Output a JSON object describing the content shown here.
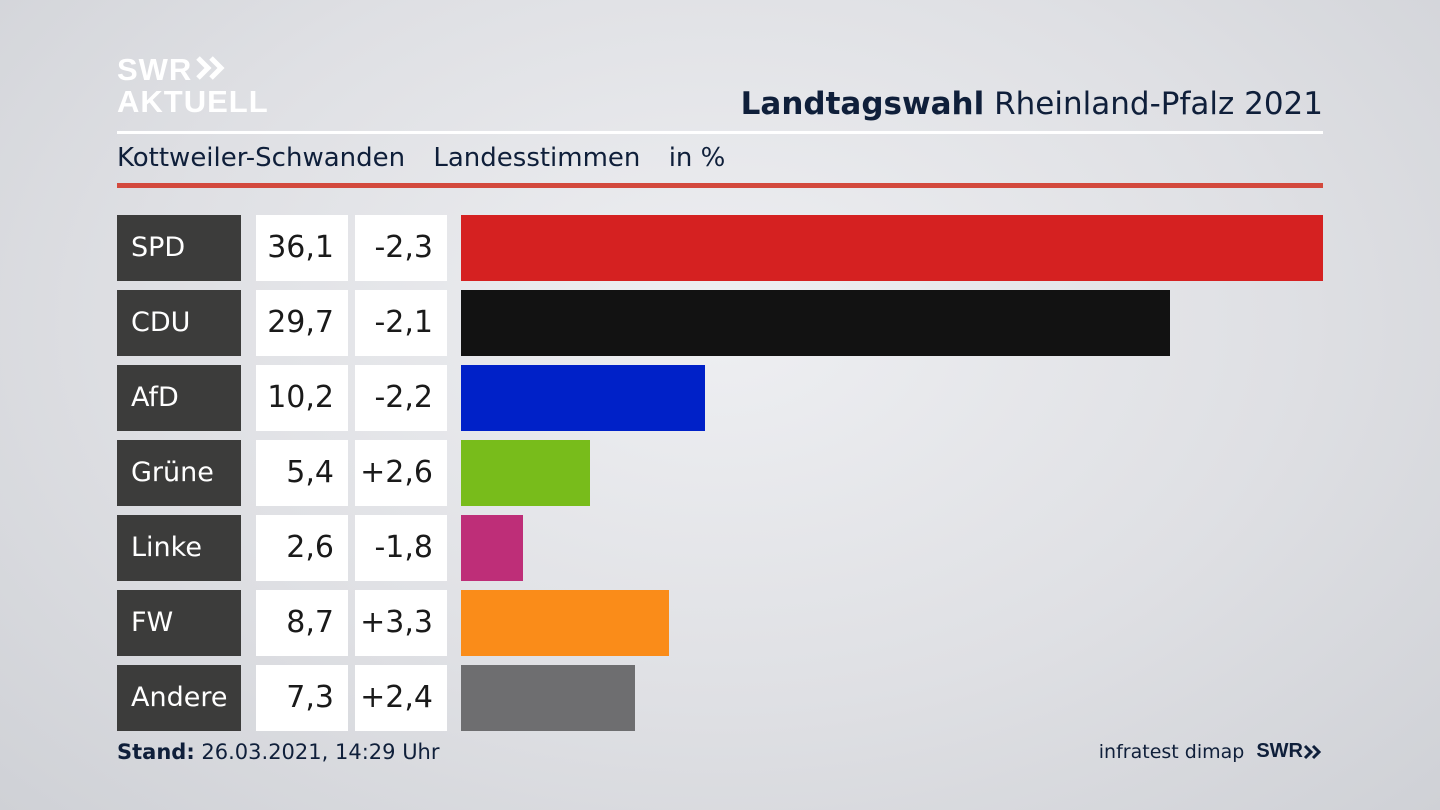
{
  "logo": {
    "line1": "SWR",
    "line2": "AKTUELL"
  },
  "header": {
    "title_bold": "Landtagswahl",
    "title_rest": "Rheinland-Pfalz 2021"
  },
  "subheader": {
    "district": "Kottweiler-Schwanden",
    "type": "Landesstimmen",
    "unit": "in %"
  },
  "chart_data": {
    "type": "bar",
    "orientation": "horizontal",
    "categories": [
      "SPD",
      "CDU",
      "AfD",
      "Grüne",
      "Linke",
      "FW",
      "Andere"
    ],
    "values": [
      36.1,
      29.7,
      10.2,
      5.4,
      2.6,
      8.7,
      7.3
    ],
    "value_labels": [
      "36,1",
      "29,7",
      "10,2",
      "5,4",
      "2,6",
      "8,7",
      "7,3"
    ],
    "changes": [
      -2.3,
      -2.1,
      -2.2,
      2.6,
      -1.8,
      3.3,
      2.4
    ],
    "change_labels": [
      "-2,3",
      "-2,1",
      "-2,2",
      "+2,6",
      "-1,8",
      "+3,3",
      "+2,4"
    ],
    "colors": [
      "#d52121",
      "#121212",
      "#0021c8",
      "#78bc1b",
      "#be2e78",
      "#fa8c19",
      "#6e6e70"
    ],
    "xlim": [
      0,
      36.1
    ],
    "grid": false,
    "legend": "none"
  },
  "footer": {
    "stand_label": "Stand:",
    "stand_value": "26.03.2021, 14:29 Uhr",
    "source": "infratest dimap",
    "brand": "SWR"
  }
}
